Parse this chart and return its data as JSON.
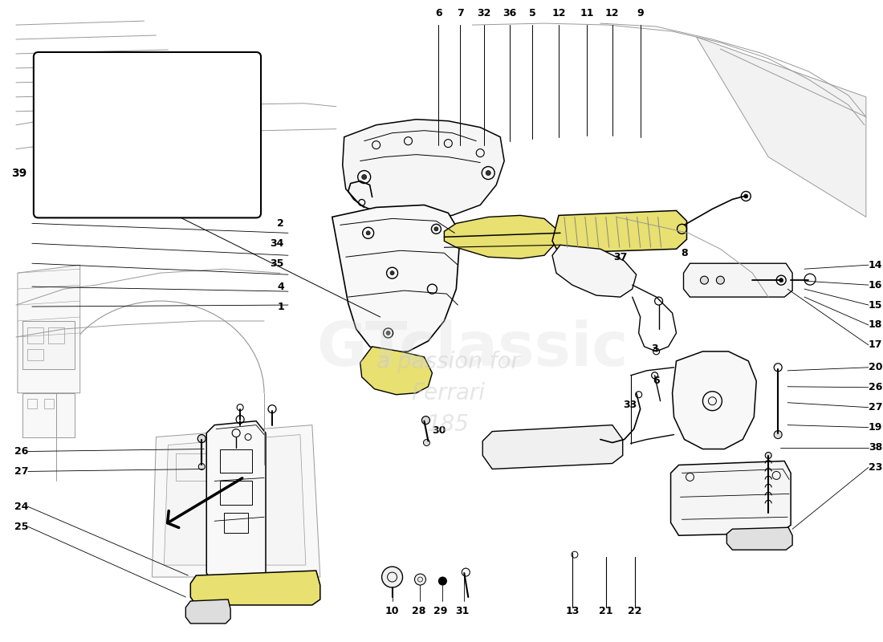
{
  "bg": "#ffffff",
  "lc": "#000000",
  "yellow": "#e8e070",
  "gray_line": "#aaaaaa",
  "watermark1": "GTclassic",
  "watermark2": "a passion for",
  "watermark3": "Ferrari",
  "watermark4": "185",
  "top_labels": [
    [
      "6",
      548
    ],
    [
      "7",
      575
    ],
    [
      "32",
      605
    ],
    [
      "36",
      637
    ],
    [
      "5",
      665
    ],
    [
      "12",
      698
    ],
    [
      "11",
      733
    ],
    [
      "12",
      765
    ],
    [
      "9",
      800
    ]
  ],
  "left_labels": [
    [
      "2",
      355,
      278
    ],
    [
      "34",
      355,
      303
    ],
    [
      "35",
      355,
      328
    ],
    [
      "4",
      355,
      357
    ],
    [
      "1",
      355,
      382
    ]
  ],
  "left2_labels": [
    [
      "26",
      18,
      563
    ],
    [
      "27",
      18,
      588
    ],
    [
      "24",
      18,
      632
    ],
    [
      "25",
      18,
      657
    ]
  ],
  "right_labels": [
    [
      "14",
      1085,
      330
    ],
    [
      "16",
      1085,
      355
    ],
    [
      "15",
      1085,
      380
    ],
    [
      "18",
      1085,
      405
    ],
    [
      "17",
      1085,
      430
    ],
    [
      "20",
      1085,
      458
    ],
    [
      "26",
      1085,
      483
    ],
    [
      "27",
      1085,
      508
    ],
    [
      "19",
      1085,
      533
    ],
    [
      "38",
      1085,
      558
    ],
    [
      "23",
      1085,
      583
    ]
  ],
  "bot_labels": [
    [
      "10",
      490,
      763
    ],
    [
      "28",
      523,
      763
    ],
    [
      "29",
      550,
      763
    ],
    [
      "31",
      578,
      763
    ],
    [
      "13",
      715,
      763
    ],
    [
      "21",
      757,
      763
    ],
    [
      "22",
      793,
      763
    ]
  ],
  "mid_labels": [
    [
      "8",
      855,
      315
    ],
    [
      "37",
      775,
      320
    ],
    [
      "30",
      548,
      537
    ],
    [
      "3",
      818,
      435
    ],
    [
      "6",
      820,
      475
    ],
    [
      "33",
      787,
      505
    ],
    [
      "39",
      68,
      198
    ]
  ]
}
